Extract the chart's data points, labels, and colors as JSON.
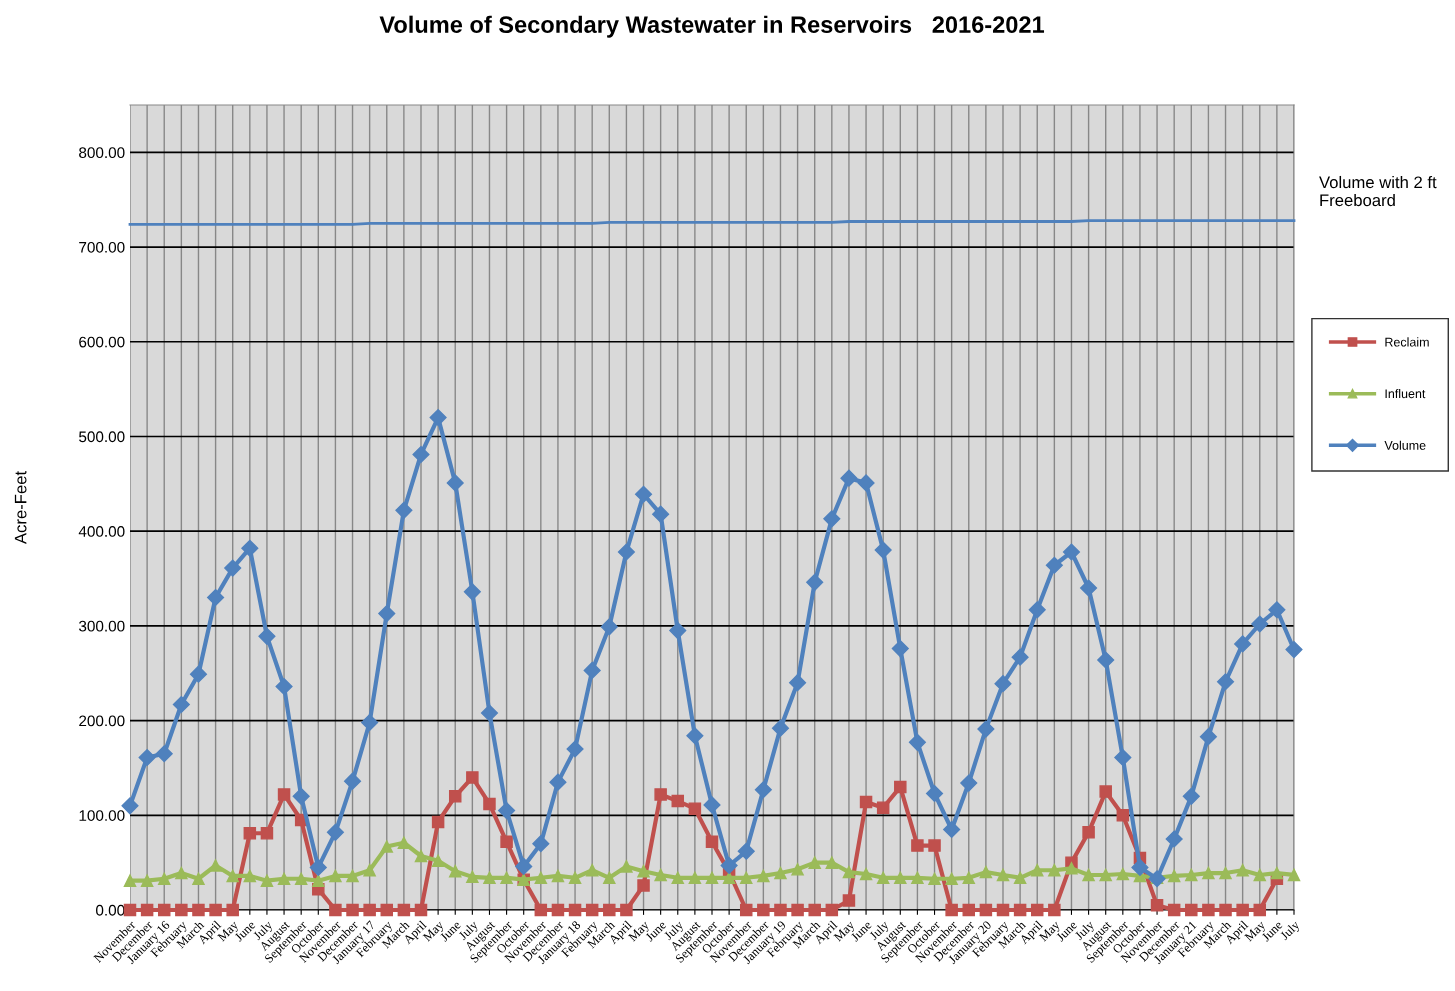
{
  "chart_data": {
    "type": "line",
    "title": "Volume of Secondary Wastewater in Reservoirs   2016-2021",
    "ylabel": "Acre-Feet",
    "categories": [
      "November",
      "December",
      "January 16",
      "February",
      "March",
      "April",
      "May",
      "June",
      "July",
      "August",
      "September",
      "October",
      "November",
      "December",
      "January 17",
      "February",
      "March",
      "April",
      "May",
      "June",
      "July",
      "August",
      "September",
      "October",
      "November",
      "December",
      "January 18",
      "February",
      "March",
      "April",
      "May",
      "June",
      "July",
      "August",
      "September",
      "October",
      "November",
      "December",
      "January 19",
      "February",
      "March",
      "April",
      "May",
      "June",
      "July",
      "August",
      "September",
      "October",
      "November",
      "December",
      "January 20",
      "February",
      "March",
      "April",
      "May",
      "June",
      "July",
      "August",
      "September",
      "October",
      "November",
      "December",
      "January 21",
      "February",
      "March",
      "April",
      "May",
      "June",
      "July"
    ],
    "series": [
      {
        "name": "Reclaim",
        "color": "#c0504d",
        "marker": "square",
        "values": [
          0,
          0,
          0,
          0,
          0,
          0,
          0,
          81,
          81,
          122,
          95,
          22,
          0,
          0,
          0,
          0,
          0,
          0,
          93,
          120,
          140,
          112,
          72,
          32,
          0,
          0,
          0,
          0,
          0,
          0,
          26,
          122,
          115,
          107,
          72,
          40,
          0,
          0,
          0,
          0,
          0,
          0,
          10,
          114,
          108,
          130,
          68,
          68,
          0,
          0,
          0,
          0,
          0,
          0,
          0,
          50,
          82,
          125,
          100,
          55,
          5,
          0,
          0,
          0,
          0,
          0,
          0,
          33,
          null
        ]
      },
      {
        "name": "Influent",
        "color": "#9bbb59",
        "marker": "triangle",
        "values": [
          31,
          31,
          33,
          39,
          33,
          47,
          36,
          36,
          31,
          33,
          33,
          31,
          36,
          36,
          42,
          67,
          71,
          57,
          52,
          41,
          35,
          34,
          34,
          32,
          34,
          36,
          34,
          42,
          34,
          46,
          41,
          37,
          34,
          34,
          34,
          34,
          34,
          36,
          39,
          43,
          50,
          50,
          40,
          38,
          34,
          34,
          34,
          33,
          33,
          34,
          40,
          37,
          34,
          42,
          42,
          44,
          37,
          37,
          38,
          36,
          34,
          36,
          37,
          39,
          39,
          42,
          37,
          39,
          37
        ]
      },
      {
        "name": "Volume",
        "color": "#4f81bd",
        "marker": "diamond",
        "values": [
          110,
          161,
          165,
          217,
          249,
          330,
          361,
          382,
          289,
          236,
          120,
          45,
          82,
          136,
          198,
          313,
          422,
          481,
          520,
          451,
          336,
          208,
          105,
          46,
          70,
          135,
          170,
          253,
          299,
          378,
          439,
          418,
          295,
          184,
          111,
          47,
          62,
          127,
          192,
          240,
          346,
          413,
          456,
          451,
          380,
          276,
          177,
          123,
          85,
          134,
          191,
          239,
          267,
          317,
          364,
          378,
          340,
          264,
          161,
          45,
          33,
          75,
          120,
          183,
          241,
          281,
          302,
          317,
          275
        ]
      },
      {
        "name": "Volume with 2 ft Freeboard",
        "color": "#4f81bd",
        "marker": "none",
        "values": [
          724,
          724,
          724,
          724,
          724,
          724,
          724,
          724,
          724,
          724,
          724,
          724,
          724,
          724,
          725,
          725,
          725,
          725,
          725,
          725,
          725,
          725,
          725,
          725,
          725,
          725,
          725,
          725,
          726,
          726,
          726,
          726,
          726,
          726,
          726,
          726,
          726,
          726,
          726,
          726,
          726,
          726,
          727,
          727,
          727,
          727,
          727,
          727,
          727,
          727,
          727,
          727,
          727,
          727,
          727,
          727,
          728,
          728,
          728,
          728,
          728,
          728,
          728,
          728,
          728,
          728,
          728,
          728,
          728
        ]
      }
    ],
    "ylim": [
      0,
      850
    ],
    "yticks": [
      {
        "value": 0,
        "label": "0.00"
      },
      {
        "value": 100,
        "label": "100.00"
      },
      {
        "value": 200,
        "label": "200.00"
      },
      {
        "value": 300,
        "label": "300.00"
      },
      {
        "value": 400,
        "label": "400.00"
      },
      {
        "value": 500,
        "label": "500.00"
      },
      {
        "value": 600,
        "label": "600.00"
      },
      {
        "value": 700,
        "label": "700.00"
      },
      {
        "value": 800,
        "label": "800.00"
      }
    ],
    "grid": true,
    "legend": "right",
    "line_style": "solid"
  }
}
